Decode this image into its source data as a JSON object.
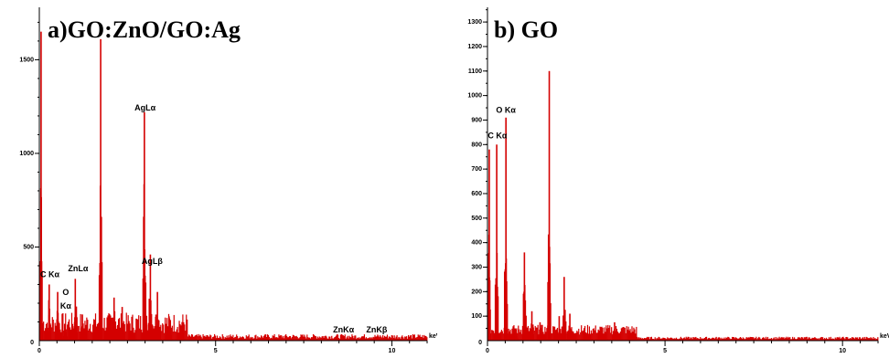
{
  "chart_data": [
    {
      "type": "bar",
      "title": "a)GO:ZnO/GO:Ag",
      "xlabel": "keV",
      "ylabel": "",
      "xlim": [
        0,
        11
      ],
      "ylim": [
        0,
        1780
      ],
      "x_ticks": [
        0,
        5,
        10
      ],
      "y_ticks": [
        500,
        1000,
        1500
      ],
      "color": "#d40000",
      "peaks": [
        {
          "x": 0.05,
          "y": 1650,
          "w": 0.03
        },
        {
          "x": 0.28,
          "y": 300,
          "w": 0.05
        },
        {
          "x": 0.52,
          "y": 260,
          "w": 0.05
        },
        {
          "x": 0.72,
          "y": 90,
          "w": 0.06
        },
        {
          "x": 1.02,
          "y": 330,
          "w": 0.06
        },
        {
          "x": 1.22,
          "y": 140,
          "w": 0.06
        },
        {
          "x": 1.74,
          "y": 1610,
          "w": 0.04
        },
        {
          "x": 2.12,
          "y": 230,
          "w": 0.08
        },
        {
          "x": 2.35,
          "y": 180,
          "w": 0.08
        },
        {
          "x": 2.98,
          "y": 1220,
          "w": 0.04
        },
        {
          "x": 3.15,
          "y": 460,
          "w": 0.06
        },
        {
          "x": 3.35,
          "y": 260,
          "w": 0.08
        },
        {
          "x": 3.68,
          "y": 130,
          "w": 0.08
        },
        {
          "x": 8.63,
          "y": 20,
          "w": 0.1
        },
        {
          "x": 9.57,
          "y": 15,
          "w": 0.1
        }
      ],
      "annotations": [
        {
          "text": "C Kα",
          "x": 0.3,
          "y": 340
        },
        {
          "text": "O",
          "x": 0.75,
          "y": 245
        },
        {
          "text": "Kα",
          "x": 0.75,
          "y": 170
        },
        {
          "text": "ZnLα",
          "x": 1.1,
          "y": 370
        },
        {
          "text": "AgLα",
          "x": 3.0,
          "y": 1230
        },
        {
          "text": "AgLβ",
          "x": 3.2,
          "y": 410
        },
        {
          "text": "ZnKα",
          "x": 8.63,
          "y": 45
        },
        {
          "text": "ZnKβ",
          "x": 9.57,
          "y": 45
        }
      ]
    },
    {
      "type": "bar",
      "title": "b) GO",
      "xlabel": "keV",
      "ylabel": "",
      "xlim": [
        0,
        11
      ],
      "ylim": [
        0,
        1360
      ],
      "x_ticks": [
        0,
        5,
        10
      ],
      "y_ticks": [
        100,
        200,
        300,
        400,
        500,
        600,
        700,
        800,
        900,
        1000,
        1100,
        1200,
        1300
      ],
      "color": "#d40000",
      "peaks": [
        {
          "x": 0.05,
          "y": 780,
          "w": 0.03
        },
        {
          "x": 0.26,
          "y": 800,
          "w": 0.04
        },
        {
          "x": 0.52,
          "y": 910,
          "w": 0.04
        },
        {
          "x": 0.78,
          "y": 50,
          "w": 0.06
        },
        {
          "x": 1.04,
          "y": 360,
          "w": 0.05
        },
        {
          "x": 1.25,
          "y": 120,
          "w": 0.06
        },
        {
          "x": 1.48,
          "y": 75,
          "w": 0.06
        },
        {
          "x": 1.74,
          "y": 1100,
          "w": 0.04
        },
        {
          "x": 2.02,
          "y": 100,
          "w": 0.06
        },
        {
          "x": 2.16,
          "y": 260,
          "w": 0.05
        },
        {
          "x": 2.32,
          "y": 110,
          "w": 0.06
        },
        {
          "x": 3.58,
          "y": 75,
          "w": 0.07
        }
      ],
      "annotations": [
        {
          "text": "C Kα",
          "x": 0.28,
          "y": 825
        },
        {
          "text": "O Kα",
          "x": 0.52,
          "y": 930
        }
      ]
    }
  ]
}
